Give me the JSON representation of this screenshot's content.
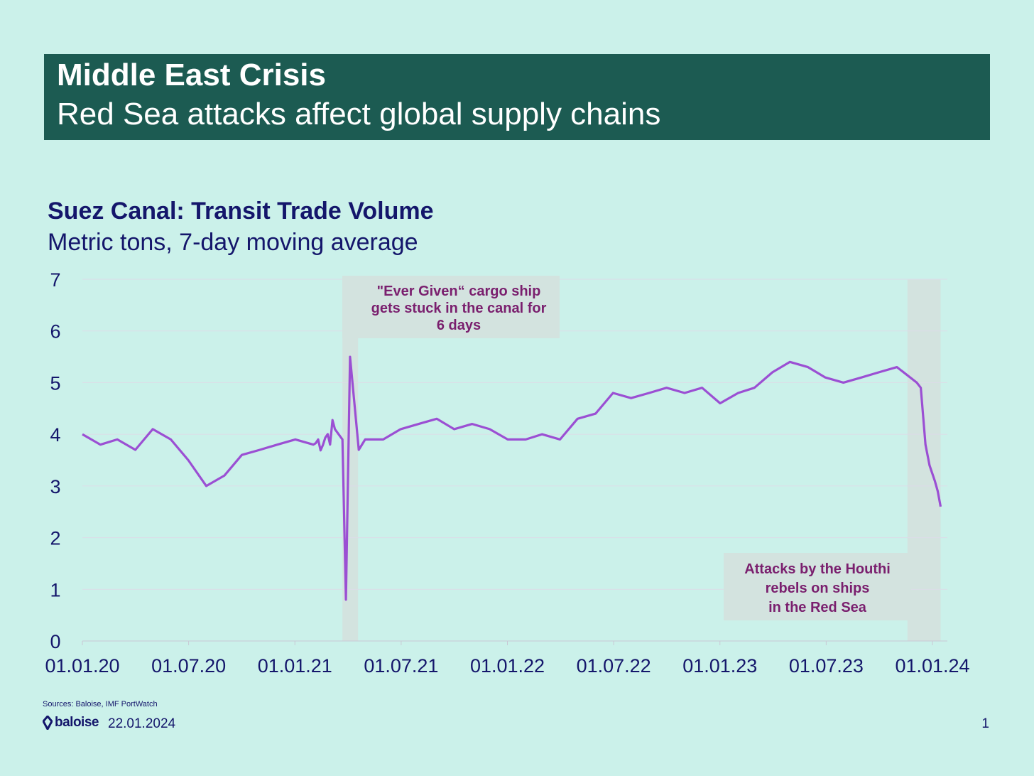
{
  "header": {
    "title": "Middle East Crisis",
    "subtitle": "Red Sea attacks affect global supply chains"
  },
  "chart_data": {
    "type": "line",
    "title": "Suez Canal: Transit Trade Volume",
    "subtitle": "Metric tons, 7-day moving average",
    "xlabel": "",
    "ylabel": "",
    "ylim": [
      0,
      7
    ],
    "yticks": [
      "0",
      "1",
      "2",
      "3",
      "4",
      "5",
      "6",
      "7"
    ],
    "xticks": [
      "01.01.20",
      "01.07.20",
      "01.01.21",
      "01.07.21",
      "01.01.22",
      "01.07.22",
      "01.01.23",
      "01.07.23",
      "01.01.24"
    ],
    "grid": true,
    "series": [
      {
        "name": "Suez Canal transit trade volume",
        "color": "#9b4fd3",
        "x": [
          "2020-01",
          "2020-02",
          "2020-03",
          "2020-04",
          "2020-05",
          "2020-06",
          "2020-07",
          "2020-08",
          "2020-09",
          "2020-10",
          "2020-11",
          "2020-12",
          "2021-01",
          "2021-02",
          "2021-03-10",
          "2021-03-23",
          "2021-03-29",
          "2021-04-05",
          "2021-04-20",
          "2021-05",
          "2021-06",
          "2021-07",
          "2021-08",
          "2021-09",
          "2021-10",
          "2021-11",
          "2021-12",
          "2022-01",
          "2022-02",
          "2022-03",
          "2022-04",
          "2022-05",
          "2022-06",
          "2022-07",
          "2022-08",
          "2022-09",
          "2022-10",
          "2022-11",
          "2022-12",
          "2023-01",
          "2023-02",
          "2023-03",
          "2023-04",
          "2023-05",
          "2023-06",
          "2023-07",
          "2023-08",
          "2023-09",
          "2023-10",
          "2023-11",
          "2023-12-05",
          "2023-12-12",
          "2023-12-20",
          "2023-12-27",
          "2024-01-05",
          "2024-01-10",
          "2024-01-15"
        ],
        "values": [
          4.0,
          3.8,
          3.9,
          3.7,
          4.1,
          3.9,
          3.5,
          3.0,
          3.2,
          3.6,
          3.7,
          3.8,
          3.9,
          3.8,
          4.1,
          3.9,
          0.8,
          5.5,
          3.7,
          3.9,
          3.9,
          4.1,
          4.2,
          4.3,
          4.1,
          4.2,
          4.1,
          3.9,
          3.9,
          4.0,
          3.9,
          4.3,
          4.4,
          4.8,
          4.7,
          4.8,
          4.9,
          4.8,
          4.9,
          4.6,
          4.8,
          4.9,
          5.2,
          5.4,
          5.3,
          5.1,
          5.0,
          5.1,
          5.2,
          5.3,
          5.0,
          4.9,
          3.8,
          3.4,
          3.1,
          2.9,
          2.6
        ]
      }
    ],
    "annotations": [
      {
        "lines": [
          "\"Ever Given“ cargo ship",
          "gets stuck in the canal for",
          "6 days"
        ],
        "period": [
          "2021-03-23",
          "2021-04-03"
        ]
      },
      {
        "lines": [
          "Attacks by the Houthi",
          "rebels on ships",
          "in the Red Sea"
        ],
        "period": [
          "2023-11-19",
          "2024-01-15"
        ]
      }
    ]
  },
  "footer": {
    "sources": "Sources: Baloise, IMF PortWatch",
    "logo_text": "baloise",
    "date": "22.01.2024",
    "page": "1"
  },
  "colors": {
    "background": "#cbf1ea",
    "banner": "#1c5b52",
    "text": "#14166b",
    "line": "#9b4fd3",
    "annotation_text": "#7a1f6e",
    "highlight": "#d3e3df"
  }
}
